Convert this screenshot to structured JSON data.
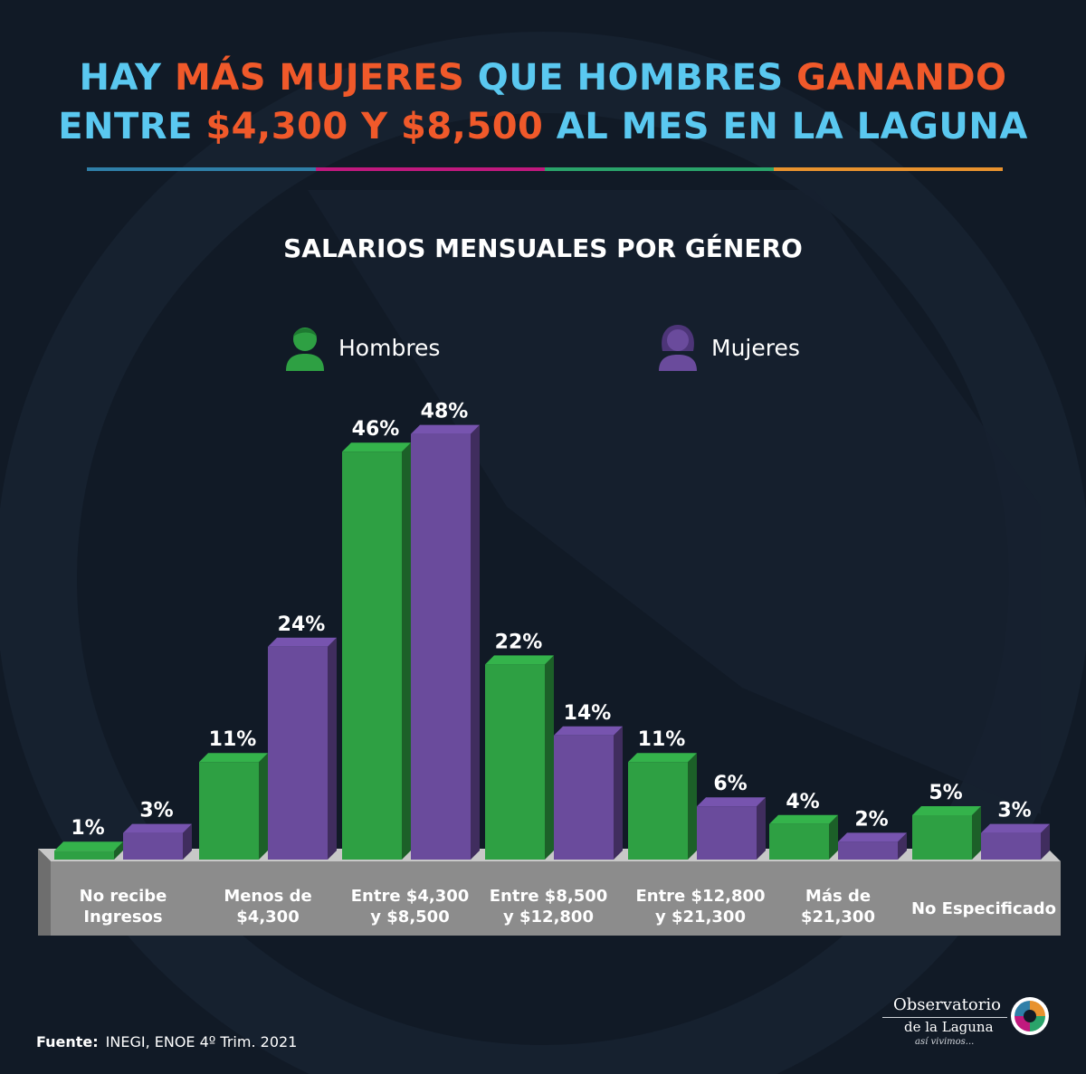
{
  "headline": {
    "line1": [
      {
        "text": "HAY ",
        "color": "#5ac8f0"
      },
      {
        "text": "MÁS MUJERES",
        "color": "#f0592a"
      },
      {
        "text": " QUE HOMBRES ",
        "color": "#5ac8f0"
      },
      {
        "text": "GANANDO",
        "color": "#f0592a"
      }
    ],
    "line2": [
      {
        "text": "ENTRE ",
        "color": "#5ac8f0"
      },
      {
        "text": "$4,300 Y $8,500",
        "color": "#f0592a"
      },
      {
        "text": " AL MES EN LA LAGUNA",
        "color": "#5ac8f0"
      }
    ]
  },
  "rule_colors": [
    "#2f7fa8",
    "#c0197e",
    "#2aa36a",
    "#e8922e"
  ],
  "legend": {
    "men": {
      "label": "Hombres",
      "color": "#2ea043",
      "icon": "man-icon"
    },
    "women": {
      "label": "Mujeres",
      "color": "#6a4b9c",
      "icon": "woman-icon"
    }
  },
  "chart_data": {
    "type": "bar",
    "title": "SALARIOS MENSUALES POR GÉNERO",
    "categories": [
      [
        "No recibe",
        "Ingresos"
      ],
      [
        "Menos de",
        "$4,300"
      ],
      [
        "Entre $4,300",
        "y $8,500"
      ],
      [
        "Entre $8,500",
        "y $12,800"
      ],
      [
        "Entre $12,800",
        "y $21,300"
      ],
      [
        "Más de",
        "$21,300"
      ],
      [
        "No Especificado"
      ]
    ],
    "series": [
      {
        "name": "Hombres",
        "values": [
          1,
          11,
          46,
          22,
          11,
          4,
          5
        ],
        "color": "#2ea043"
      },
      {
        "name": "Mujeres",
        "values": [
          3,
          24,
          48,
          14,
          6,
          2,
          3
        ],
        "color": "#6a4b9c"
      }
    ],
    "value_suffix": "%",
    "ylim": [
      0,
      50
    ]
  },
  "source": {
    "label": "Fuente:",
    "text": "INEGI, ENOE 4º Trim. 2021"
  },
  "logo": {
    "line1": "Observatorio",
    "line2": "de la Laguna",
    "line3": "así vivimos..."
  }
}
